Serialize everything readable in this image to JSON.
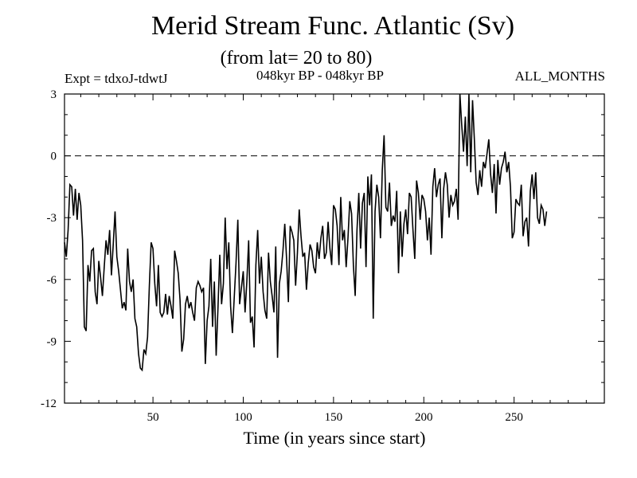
{
  "header": {
    "title": "Merid Stream Func. Atlantic (Sv)",
    "subtitle": "(from lat= 20 to 80)",
    "expt": "Expt = tdxoJ-tdwtJ",
    "period": "048kyr BP - 048kyr BP",
    "months": "ALL_MONTHS"
  },
  "chart_data": {
    "type": "line",
    "title": "Merid Stream Func. Atlantic (Sv)",
    "subtitle": "(from lat= 20 to 80)",
    "xlabel": "Time (in years since start)",
    "ylabel": "",
    "xlim": [
      1,
      300
    ],
    "ylim": [
      -12,
      3
    ],
    "xticks": [
      50,
      100,
      150,
      200,
      250
    ],
    "yticks": [
      3,
      0,
      -3,
      -6,
      -9,
      -12
    ],
    "reference_line": {
      "y": 0,
      "style": "dashed"
    },
    "grid": false,
    "series": [
      {
        "x_start": 1,
        "x_step": 1,
        "values": [
          -4.2,
          -4.9,
          -3.6,
          -1.4,
          -1.5,
          -2.9,
          -1.6,
          -3.1,
          -1.8,
          -2.4,
          -4.1,
          -8.3,
          -8.5,
          -5.3,
          -6.1,
          -4.6,
          -4.5,
          -6.6,
          -7.2,
          -5.1,
          -5.9,
          -6.8,
          -5.4,
          -4.1,
          -4.8,
          -3.6,
          -5.8,
          -4.3,
          -2.7,
          -4.9,
          -5.6,
          -6.5,
          -7.4,
          -7.1,
          -7.5,
          -4.5,
          -6.1,
          -6.6,
          -6.0,
          -7.9,
          -8.3,
          -9.6,
          -10.3,
          -10.4,
          -9.4,
          -9.6,
          -8.8,
          -6.3,
          -4.2,
          -4.5,
          -6.2,
          -7.3,
          -5.3,
          -7.6,
          -7.8,
          -7.6,
          -6.7,
          -7.7,
          -6.8,
          -7.3,
          -7.9,
          -4.6,
          -5.1,
          -5.7,
          -7.0,
          -9.5,
          -8.9,
          -7.2,
          -6.8,
          -7.4,
          -7.1,
          -7.6,
          -8.0,
          -6.4,
          -6.1,
          -6.3,
          -6.6,
          -6.4,
          -10.1,
          -8.0,
          -7.3,
          -5.0,
          -8.3,
          -6.1,
          -9.7,
          -7.4,
          -4.8,
          -7.2,
          -6.2,
          -3.0,
          -5.5,
          -4.2,
          -7.3,
          -8.6,
          -6.9,
          -5.2,
          -3.1,
          -7.2,
          -6.4,
          -5.6,
          -7.6,
          -6.1,
          -4.1,
          -8.1,
          -7.8,
          -9.3,
          -5.3,
          -3.6,
          -6.2,
          -4.9,
          -6.6,
          -7.5,
          -7.9,
          -4.7,
          -6.1,
          -6.8,
          -7.6,
          -4.4,
          -9.8,
          -6.2,
          -5.6,
          -4.6,
          -3.3,
          -5.0,
          -7.1,
          -3.4,
          -3.7,
          -4.1,
          -6.3,
          -4.7,
          -2.6,
          -3.9,
          -4.9,
          -4.7,
          -6.5,
          -5.2,
          -4.3,
          -4.6,
          -5.4,
          -5.7,
          -4.2,
          -5.0,
          -4.0,
          -3.4,
          -5.0,
          -4.7,
          -3.2,
          -4.5,
          -5.3,
          -2.4,
          -2.6,
          -3.4,
          -5.3,
          -2.0,
          -4.1,
          -3.6,
          -5.4,
          -4.0,
          -2.2,
          -2.8,
          -5.3,
          -6.8,
          -3.6,
          -1.8,
          -4.5,
          -2.3,
          -1.8,
          -5.4,
          -1.0,
          -2.4,
          -0.9,
          -7.9,
          -2.7,
          -1.4,
          -2.0,
          -4.0,
          -0.7,
          1.0,
          -2.5,
          -2.7,
          -1.3,
          -3.4,
          -2.9,
          -3.2,
          -1.7,
          -5.7,
          -2.7,
          -4.9,
          -3.3,
          -2.6,
          -3.8,
          -1.8,
          -2.0,
          -3.6,
          -5.0,
          -1.2,
          -1.8,
          -3.1,
          -1.9,
          -2.1,
          -2.7,
          -4.1,
          -3.0,
          -4.8,
          -1.5,
          -0.6,
          -2.0,
          -1.4,
          -1.1,
          -4.0,
          -1.6,
          -0.8,
          -1.4,
          -3.0,
          -1.9,
          -2.4,
          -2.2,
          -1.6,
          -3.1,
          3.0,
          1.5,
          0.2,
          1.9,
          -0.5,
          3.0,
          -0.8,
          2.7,
          0.8,
          -1.3,
          -1.9,
          -0.7,
          -1.5,
          -0.3,
          -0.6,
          0.1,
          0.8,
          -0.9,
          -1.8,
          -0.4,
          -2.8,
          -0.2,
          -1.4,
          -0.6,
          -0.3,
          0.2,
          -0.8,
          -0.3,
          -1.5,
          -4.0,
          -3.7,
          -2.1,
          -2.3,
          -2.4,
          -1.4,
          -3.9,
          -3.2,
          -3.0,
          -4.4,
          -1.7,
          -0.9,
          -2.1,
          -0.8,
          -3.0,
          -3.3,
          -2.4,
          -2.6,
          -3.4,
          -2.7
        ]
      }
    ]
  },
  "axes": {
    "y_ticks": [
      "3",
      "0",
      "-3",
      "-6",
      "-9",
      "-12"
    ],
    "x_ticks": [
      "50",
      "100",
      "150",
      "200",
      "250"
    ]
  }
}
